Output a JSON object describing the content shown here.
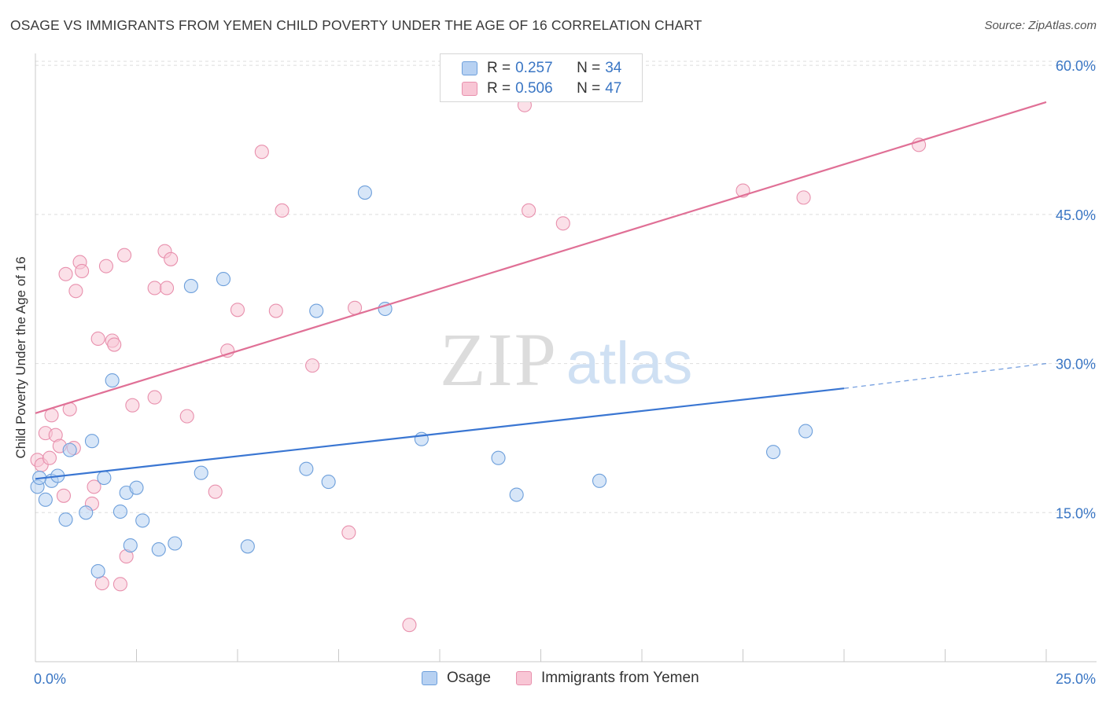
{
  "title": "OSAGE VS IMMIGRANTS FROM YEMEN CHILD POVERTY UNDER THE AGE OF 16 CORRELATION CHART",
  "source": "Source: ZipAtlas.com",
  "watermark": {
    "zip": "ZIP",
    "atlas": "atlas"
  },
  "colors": {
    "osage_fill": "#b7d1f2",
    "osage_stroke": "#6d9fdb",
    "osage_line": "#3a76d2",
    "yemen_fill": "#f8c6d5",
    "yemen_stroke": "#e890ad",
    "yemen_line": "#e07096",
    "tick_label": "#3a76c4",
    "grid": "#dedede"
  },
  "legend": {
    "rows": [
      {
        "r_label": "R = ",
        "r_value": "0.257",
        "n_label": "N = ",
        "n_value": "34"
      },
      {
        "r_label": "R = ",
        "r_value": "0.506",
        "n_label": "N = ",
        "n_value": "47"
      }
    ],
    "series_names": [
      "Osage",
      "Immigrants from Yemen"
    ]
  },
  "chart_data": {
    "type": "scatter",
    "title": "OSAGE VS IMMIGRANTS FROM YEMEN CHILD POVERTY UNDER THE AGE OF 16 CORRELATION CHART",
    "xlabel": "",
    "ylabel": "Child Poverty Under the Age of 16",
    "xlim": [
      0,
      25
    ],
    "ylim": [
      0,
      61.2
    ],
    "x_tick_labels": [
      {
        "value": 0,
        "label": "0.0%"
      },
      {
        "value": 25,
        "label": "25.0%"
      }
    ],
    "y_tick_labels": [
      {
        "value": 15,
        "label": "15.0%"
      },
      {
        "value": 30,
        "label": "30.0%"
      },
      {
        "value": 45,
        "label": "45.0%"
      },
      {
        "value": 60,
        "label": "60.0%"
      }
    ],
    "y_grid": [
      15,
      30,
      45,
      60
    ],
    "grid": true,
    "legend_position": "top-center",
    "series": [
      {
        "name": "Osage",
        "R": 0.257,
        "N": 34,
        "trend": {
          "x0": 0,
          "y0": 18.4,
          "x1": 20,
          "y1": 27.5,
          "dashed_to_x": 25,
          "dashed_to_y": 30.0
        },
        "points": [
          {
            "x": 0.05,
            "y": 17.6
          },
          {
            "x": 0.25,
            "y": 16.3
          },
          {
            "x": 0.4,
            "y": 18.2
          },
          {
            "x": 0.55,
            "y": 18.7
          },
          {
            "x": 0.75,
            "y": 14.3
          },
          {
            "x": 0.85,
            "y": 21.3
          },
          {
            "x": 1.25,
            "y": 15.0
          },
          {
            "x": 1.4,
            "y": 22.2
          },
          {
            "x": 1.55,
            "y": 9.1
          },
          {
            "x": 1.7,
            "y": 18.5
          },
          {
            "x": 1.9,
            "y": 28.3
          },
          {
            "x": 2.1,
            "y": 15.1
          },
          {
            "x": 2.25,
            "y": 17.0
          },
          {
            "x": 2.35,
            "y": 11.7
          },
          {
            "x": 2.5,
            "y": 17.5
          },
          {
            "x": 2.65,
            "y": 14.2
          },
          {
            "x": 3.05,
            "y": 11.3
          },
          {
            "x": 3.45,
            "y": 11.9
          },
          {
            "x": 3.85,
            "y": 37.8
          },
          {
            "x": 4.1,
            "y": 19.0
          },
          {
            "x": 4.65,
            "y": 38.5
          },
          {
            "x": 5.25,
            "y": 11.6
          },
          {
            "x": 6.7,
            "y": 19.4
          },
          {
            "x": 6.95,
            "y": 35.3
          },
          {
            "x": 7.25,
            "y": 18.1
          },
          {
            "x": 8.15,
            "y": 47.2
          },
          {
            "x": 8.65,
            "y": 35.5
          },
          {
            "x": 9.55,
            "y": 22.4
          },
          {
            "x": 11.45,
            "y": 20.5
          },
          {
            "x": 11.9,
            "y": 16.8
          },
          {
            "x": 13.95,
            "y": 18.2
          },
          {
            "x": 18.25,
            "y": 21.1
          },
          {
            "x": 19.05,
            "y": 23.2
          },
          {
            "x": 0.1,
            "y": 18.5
          }
        ]
      },
      {
        "name": "Immigrants from Yemen",
        "R": 0.506,
        "N": 47,
        "trend": {
          "x0": 0,
          "y0": 25.0,
          "x1": 25,
          "y1": 56.3
        },
        "points": [
          {
            "x": 0.05,
            "y": 20.3
          },
          {
            "x": 0.15,
            "y": 19.8
          },
          {
            "x": 0.25,
            "y": 23.0
          },
          {
            "x": 0.35,
            "y": 20.5
          },
          {
            "x": 0.4,
            "y": 24.8
          },
          {
            "x": 0.5,
            "y": 22.8
          },
          {
            "x": 0.6,
            "y": 21.7
          },
          {
            "x": 0.7,
            "y": 16.7
          },
          {
            "x": 0.75,
            "y": 39.0
          },
          {
            "x": 0.85,
            "y": 25.4
          },
          {
            "x": 0.95,
            "y": 21.5
          },
          {
            "x": 1.0,
            "y": 37.3
          },
          {
            "x": 1.1,
            "y": 40.2
          },
          {
            "x": 1.15,
            "y": 39.3
          },
          {
            "x": 1.4,
            "y": 15.9
          },
          {
            "x": 1.45,
            "y": 17.6
          },
          {
            "x": 1.55,
            "y": 32.5
          },
          {
            "x": 1.65,
            "y": 7.9
          },
          {
            "x": 1.75,
            "y": 39.8
          },
          {
            "x": 1.9,
            "y": 32.3
          },
          {
            "x": 1.95,
            "y": 31.9
          },
          {
            "x": 2.1,
            "y": 7.8
          },
          {
            "x": 2.2,
            "y": 40.9
          },
          {
            "x": 2.25,
            "y": 10.6
          },
          {
            "x": 2.4,
            "y": 25.8
          },
          {
            "x": 2.95,
            "y": 26.6
          },
          {
            "x": 2.95,
            "y": 37.6
          },
          {
            "x": 3.2,
            "y": 41.3
          },
          {
            "x": 3.25,
            "y": 37.6
          },
          {
            "x": 3.35,
            "y": 40.5
          },
          {
            "x": 3.75,
            "y": 24.7
          },
          {
            "x": 4.45,
            "y": 17.1
          },
          {
            "x": 4.75,
            "y": 31.3
          },
          {
            "x": 5.0,
            "y": 35.4
          },
          {
            "x": 5.6,
            "y": 51.3
          },
          {
            "x": 5.95,
            "y": 35.3
          },
          {
            "x": 6.1,
            "y": 45.4
          },
          {
            "x": 6.85,
            "y": 29.8
          },
          {
            "x": 7.75,
            "y": 13.0
          },
          {
            "x": 7.9,
            "y": 35.6
          },
          {
            "x": 9.25,
            "y": 3.7
          },
          {
            "x": 12.1,
            "y": 56.0
          },
          {
            "x": 12.2,
            "y": 45.4
          },
          {
            "x": 13.05,
            "y": 44.1
          },
          {
            "x": 17.5,
            "y": 47.4
          },
          {
            "x": 19.0,
            "y": 46.7
          },
          {
            "x": 21.85,
            "y": 52.0
          }
        ]
      }
    ]
  }
}
